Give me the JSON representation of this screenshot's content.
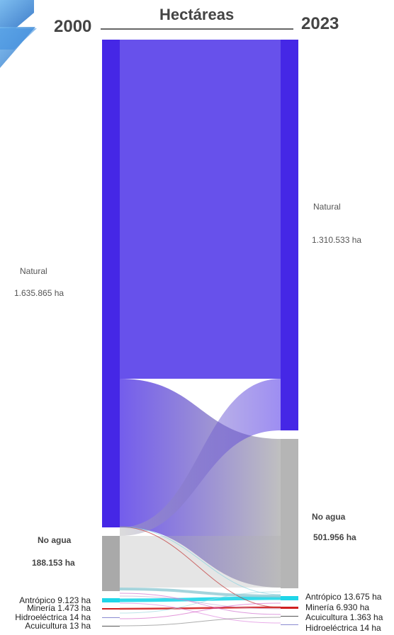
{
  "header": {
    "title": "Hectáreas",
    "year_left": "2000",
    "year_right": "2023"
  },
  "nodes_2000": [
    {
      "name": "Natural",
      "value_text": "1.635.865 ha",
      "color": "#4527e6"
    },
    {
      "name": "No agua",
      "value_text": "188.153 ha",
      "color": "#b0b0b0"
    },
    {
      "label": "Antrópico 9.123 ha",
      "color": "#1fd6e8"
    },
    {
      "label": "Minería 1.473 ha",
      "color": "#d02020"
    },
    {
      "label": "Hidroeléctrica 14 ha",
      "color": "#8a8ad0"
    },
    {
      "label": "Acuicultura 13 ha",
      "color": "#555555"
    }
  ],
  "nodes_2023": [
    {
      "name": "Natural",
      "value_text": "1.310.533 ha",
      "color": "#4527e6"
    },
    {
      "name": "No agua",
      "value_text": "501.956 ha",
      "color": "#b0b0b0"
    },
    {
      "label": "Antrópico 13.675 ha",
      "color": "#1fd6e8"
    },
    {
      "label": "Minería 6.930 ha",
      "color": "#d02020"
    },
    {
      "label": "Acuicultura 1.363 ha",
      "color": "#555555"
    },
    {
      "label": "Hidroeléctrica 14 ha",
      "color": "#8a8ad0"
    }
  ],
  "chart_data": {
    "type": "sankey",
    "title": "Hectáreas",
    "source_year": "2000",
    "target_year": "2023",
    "sources": [
      {
        "name": "Natural",
        "value": 1635865
      },
      {
        "name": "No agua",
        "value": 188153
      },
      {
        "name": "Antrópico",
        "value": 9123
      },
      {
        "name": "Minería",
        "value": 1473
      },
      {
        "name": "Hidroeléctrica",
        "value": 14
      },
      {
        "name": "Acuicultura",
        "value": 13
      }
    ],
    "targets": [
      {
        "name": "Natural",
        "value": 1310533
      },
      {
        "name": "No agua",
        "value": 501956
      },
      {
        "name": "Antrópico",
        "value": 13675
      },
      {
        "name": "Minería",
        "value": 6930
      },
      {
        "name": "Acuicultura",
        "value": 1363
      },
      {
        "name": "Hidroeléctrica",
        "value": 14
      }
    ],
    "flows": [
      {
        "from": "Natural",
        "to": "Natural",
        "value": 1298000
      },
      {
        "from": "Natural",
        "to": "No agua",
        "value": 330000
      },
      {
        "from": "No agua",
        "to": "Natural",
        "value": 12000
      },
      {
        "from": "No agua",
        "to": "No agua",
        "value": 170000
      },
      {
        "from": "Antrópico",
        "to": "Antrópico",
        "value": 8000
      },
      {
        "from": "Natural",
        "to": "Minería",
        "value": 5000
      },
      {
        "from": "Minería",
        "to": "Minería",
        "value": 1300
      },
      {
        "from": "Natural",
        "to": "Antrópico",
        "value": 4500
      },
      {
        "from": "Natural",
        "to": "Acuicultura",
        "value": 1200
      }
    ]
  }
}
